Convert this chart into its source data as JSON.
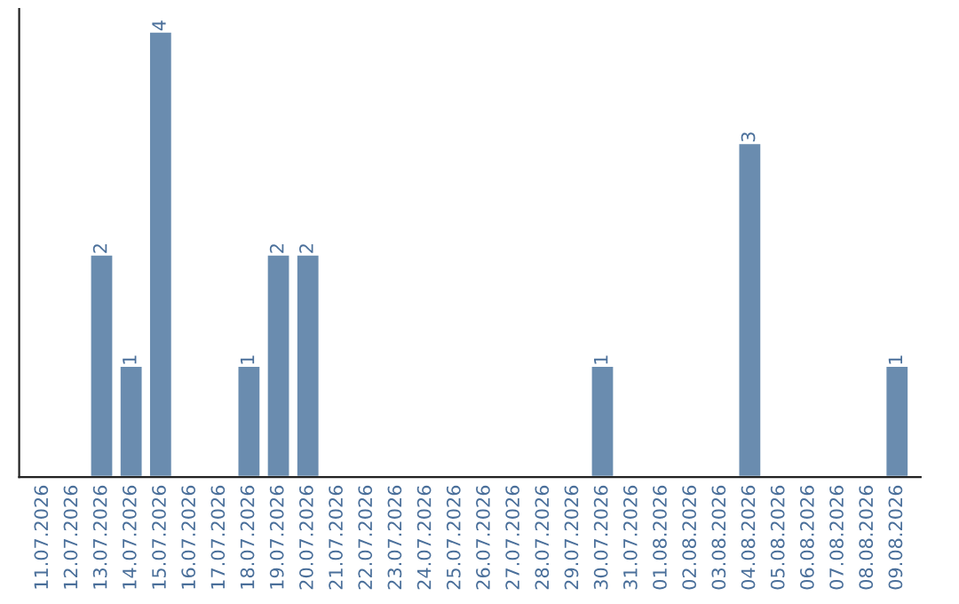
{
  "chart_data": {
    "type": "bar",
    "categories": [
      "11.07.2026",
      "12.07.2026",
      "13.07.2026",
      "14.07.2026",
      "15.07.2026",
      "16.07.2026",
      "17.07.2026",
      "18.07.2026",
      "19.07.2026",
      "20.07.2026",
      "21.07.2026",
      "22.07.2026",
      "23.07.2026",
      "24.07.2026",
      "25.07.2026",
      "26.07.2026",
      "27.07.2026",
      "28.07.2026",
      "29.07.2026",
      "30.07.2026",
      "31.07.2026",
      "01.08.2026",
      "02.08.2026",
      "03.08.2026",
      "04.08.2026",
      "05.08.2026",
      "06.08.2026",
      "07.08.2026",
      "08.08.2026",
      "09.08.2026"
    ],
    "values": [
      null,
      null,
      2,
      1,
      4,
      null,
      null,
      1,
      2,
      2,
      null,
      null,
      null,
      null,
      null,
      null,
      null,
      null,
      null,
      1,
      null,
      null,
      null,
      null,
      3,
      null,
      null,
      null,
      null,
      1
    ],
    "value_labels": [
      null,
      null,
      "2",
      "1",
      "4",
      null,
      null,
      "1",
      "2",
      "2",
      null,
      null,
      null,
      null,
      null,
      null,
      null,
      null,
      null,
      "1",
      null,
      null,
      null,
      null,
      "3",
      null,
      null,
      null,
      null,
      "1"
    ],
    "color": "#6a8caf",
    "grid": false,
    "legend": false
  }
}
